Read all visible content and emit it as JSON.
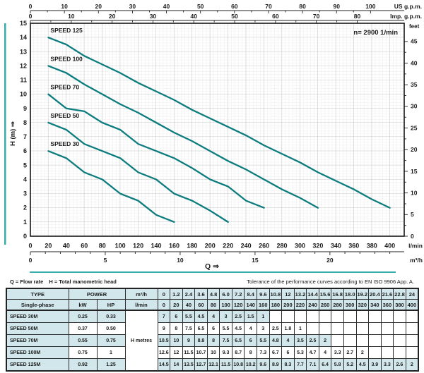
{
  "colors": {
    "curve": "#0d7c7e",
    "accent": "#3aacac",
    "table_tint": "#d2e7ec",
    "grid_minor": "#dcdcdc",
    "grid_major": "#b9b9b9",
    "plot_border": "#161616"
  },
  "chart": {
    "annotation": "n= 2900 1/min",
    "q_label": "Q ⇒",
    "h_axis_label": "H (m) ⇒",
    "axes": {
      "us_gpm": {
        "label": "US g.p.m.",
        "ticks": [
          0,
          10,
          20,
          30,
          40,
          50,
          60,
          70,
          80,
          90,
          100
        ]
      },
      "imp_gpm": {
        "label": "Imp. g.p.m.",
        "ticks": [
          0,
          10,
          20,
          30,
          40,
          50,
          60,
          70,
          80
        ]
      },
      "feet": {
        "label": "feet",
        "ticks": [
          0,
          5,
          10,
          15,
          20,
          25,
          30,
          35,
          40,
          45
        ]
      },
      "h_m": {
        "label": "H (m)",
        "ticks": [
          0,
          1,
          2,
          3,
          4,
          5,
          6,
          7,
          8,
          9,
          10,
          11,
          12,
          13,
          14,
          15
        ]
      },
      "lmin": {
        "label": "l/min",
        "ticks": [
          0,
          20,
          40,
          60,
          80,
          100,
          120,
          140,
          160,
          180,
          200,
          220,
          240,
          260,
          280,
          300,
          320,
          340,
          360,
          380,
          400
        ]
      },
      "m3h": {
        "label": "m³/h",
        "major_ticks": [
          0,
          5,
          10,
          15,
          20
        ],
        "minor_step": 1,
        "minor_max": 24
      }
    }
  },
  "chart_data": {
    "type": "line",
    "xlabel": "Q",
    "ylabel": "H (m)",
    "x_unit": "l/min",
    "x_start": 20,
    "x_step": 20,
    "xlim_lmin": [
      0,
      416
    ],
    "ylim": [
      0,
      15
    ],
    "annotation": "n= 2900 1/min",
    "series": [
      {
        "name": "SPEED 125",
        "values": [
          14,
          13.5,
          12.7,
          12.1,
          11.5,
          10.8,
          10.2,
          9.6,
          8.9,
          8.3,
          7.7,
          7.1,
          6.4,
          5.8,
          5.2,
          4.5,
          3.9,
          3.3,
          2.6,
          2
        ]
      },
      {
        "name": "SPEED 100",
        "values": [
          12,
          11.5,
          10.7,
          10,
          9.3,
          8.7,
          8,
          7.3,
          6.7,
          6,
          5.3,
          4.7,
          4,
          3.3,
          2.7,
          2
        ]
      },
      {
        "name": "SPEED 70",
        "values": [
          10,
          9,
          8.8,
          8,
          7.5,
          6.5,
          6,
          5.5,
          4.8,
          4,
          3.5,
          2.5,
          2
        ]
      },
      {
        "name": "SPEED 50",
        "values": [
          8,
          7.5,
          6.5,
          6,
          5.5,
          4.5,
          4,
          3,
          2.5,
          1.8,
          1
        ]
      },
      {
        "name": "SPEED 30",
        "values": [
          6,
          5.5,
          4.5,
          4,
          3,
          2.5,
          1.5,
          1
        ]
      }
    ]
  },
  "captions": {
    "flow": "Q = Flow rate",
    "head": "H = Total manometric head",
    "tolerance": "Tolerance of the performance curves according to EN ISO 9906 App. A."
  },
  "table": {
    "header": {
      "type": "TYPE",
      "type_sub": "Single-phase",
      "power": "POWER",
      "kw": "kW",
      "hp": "HP",
      "m3h": "m³/h",
      "lmin": "l/min",
      "h_metres": "H metres"
    },
    "col_m3h": [
      "0",
      "1.2",
      "2.4",
      "3.6",
      "4.8",
      "6.0",
      "7.2",
      "8.4",
      "9.6",
      "10.8",
      "12",
      "13.2",
      "14.4",
      "15.6",
      "16.8",
      "18.0",
      "19.2",
      "20.4",
      "21.6",
      "22.8",
      "24"
    ],
    "col_lmin": [
      "0",
      "20",
      "40",
      "60",
      "80",
      "100",
      "120",
      "140",
      "160",
      "180",
      "200",
      "220",
      "240",
      "260",
      "280",
      "300",
      "320",
      "340",
      "360",
      "380",
      "400"
    ],
    "rows": [
      {
        "type": "SPEED 30M",
        "kw": "0.25",
        "hp": "0.33",
        "values": [
          "7",
          "6",
          "5.5",
          "4.5",
          "4",
          "3",
          "2.5",
          "1.5",
          "1",
          "",
          "",
          "",
          "",
          "",
          "",
          "",
          "",
          "",
          "",
          "",
          ""
        ]
      },
      {
        "type": "SPEED 50M",
        "kw": "0.37",
        "hp": "0.50",
        "values": [
          "9",
          "8",
          "7.5",
          "6.5",
          "6",
          "5.5",
          "4.5",
          "4",
          "3",
          "2.5",
          "1.8",
          "1",
          "",
          "",
          "",
          "",
          "",
          "",
          "",
          "",
          ""
        ]
      },
      {
        "type": "SPEED 70M",
        "kw": "0.55",
        "hp": "0.75",
        "values": [
          "10.5",
          "10",
          "9",
          "8.8",
          "8",
          "7.5",
          "6.5",
          "6",
          "5.5",
          "4.8",
          "4",
          "3.5",
          "2.5",
          "2",
          "",
          "",
          "",
          "",
          "",
          "",
          ""
        ]
      },
      {
        "type": "SPEED 100M",
        "kw": "0.75",
        "hp": "1",
        "values": [
          "12.6",
          "12",
          "11.5",
          "10.7",
          "10",
          "9.3",
          "8.7",
          "8",
          "7.3",
          "6.7",
          "6",
          "5.3",
          "4.7",
          "4",
          "3.3",
          "2.7",
          "2",
          "",
          "",
          "",
          ""
        ]
      },
      {
        "type": "SPEED 125M",
        "kw": "0.92",
        "hp": "1.25",
        "values": [
          "14.5",
          "14",
          "13.5",
          "12.7",
          "12.1",
          "11.5",
          "10.8",
          "10.2",
          "9.6",
          "8.9",
          "8.3",
          "7.7",
          "7.1",
          "6.4",
          "5.8",
          "5.2",
          "4.5",
          "3.9",
          "3.3",
          "2.6",
          "2"
        ]
      }
    ]
  }
}
